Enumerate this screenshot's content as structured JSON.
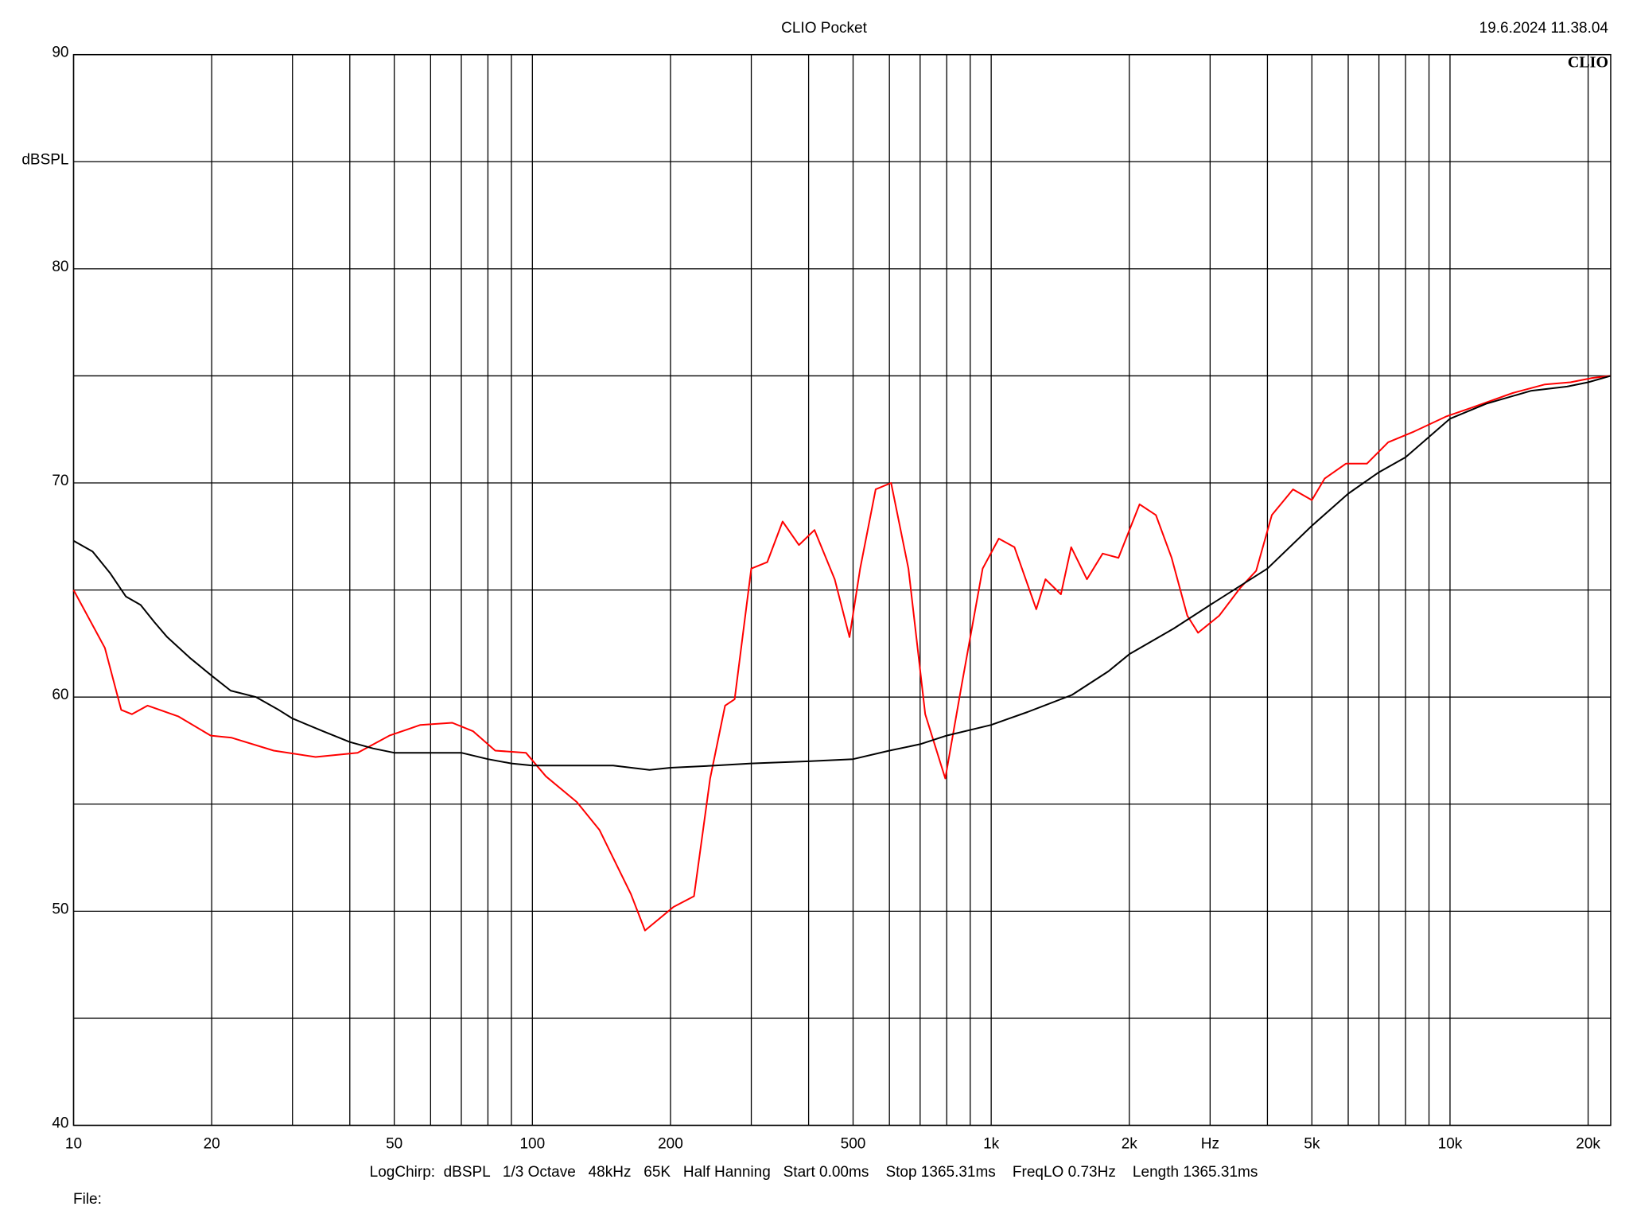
{
  "chart_data": {
    "type": "line",
    "title": "CLIO Pocket",
    "timestamp": "19.6.2024 11.38.04",
    "logo": "CLIO",
    "footer": "LogChirp:  dBSPL   1/3 Octave   48kHz   65K   Half Hanning   Start 0.00ms    Stop 1365.31ms    FreqLO 0.73Hz    Length 1365.31ms",
    "file_label": "File:",
    "xlog": true,
    "grid": true,
    "xlim": [
      10,
      22400
    ],
    "ylim": [
      40,
      90
    ],
    "xticks": [
      10,
      20,
      50,
      100,
      200,
      500,
      {
        "value": 1000,
        "label": "1k"
      },
      {
        "value": 2000,
        "label": "2k"
      },
      {
        "value": 3000,
        "label": "Hz"
      },
      {
        "value": 5000,
        "label": "5k"
      },
      {
        "value": 10000,
        "label": "10k"
      },
      {
        "value": 20000,
        "label": "20k"
      }
    ],
    "xgrid_minor": [
      30,
      40,
      60,
      70,
      80,
      90,
      300,
      400,
      600,
      700,
      800,
      900,
      4000,
      6000,
      7000,
      8000,
      9000
    ],
    "yticks": [
      40,
      50,
      60,
      70,
      80,
      {
        "value": 85,
        "label": "dBSPL"
      },
      90
    ],
    "ygrid_minor": [
      45,
      55,
      65,
      75
    ],
    "series": [
      {
        "color": "#ff0000",
        "x": [
          10,
          11.7,
          12.7,
          13.4,
          14.5,
          16.9,
          19.9,
          22.1,
          27.3,
          33.7,
          41.6,
          48.8,
          57,
          66.9,
          74.3,
          83,
          96.8,
          107,
          125,
          140,
          164,
          176,
          203,
          225,
          244,
          263,
          276,
          300,
          325,
          351,
          381,
          412,
          456,
          491,
          518,
          560,
          605,
          660,
          718,
          794,
          863,
          958,
          1039,
          1124,
          1254,
          1313,
          1419,
          1494,
          1617,
          1750,
          1894,
          2106,
          2285,
          2473,
          2676,
          2824,
          3140,
          3491,
          3780,
          4090,
          4548,
          5000,
          5330,
          5930,
          6590,
          7330,
          8350,
          9800,
          11100,
          13700,
          16100,
          18300,
          20400,
          22400
        ],
        "values": [
          65.0,
          62.3,
          59.4,
          59.2,
          59.6,
          59.1,
          58.2,
          58.1,
          57.5,
          57.2,
          57.4,
          58.2,
          58.7,
          58.8,
          58.4,
          57.5,
          57.4,
          56.3,
          55.1,
          53.8,
          50.8,
          49.1,
          50.2,
          50.7,
          56.2,
          59.6,
          59.9,
          66.0,
          66.3,
          68.2,
          67.1,
          67.8,
          65.5,
          62.8,
          66.0,
          69.7,
          70.0,
          66.0,
          59.2,
          56.2,
          60.6,
          66.0,
          67.4,
          67.0,
          64.1,
          65.5,
          64.8,
          67.0,
          65.5,
          66.7,
          66.5,
          69.0,
          68.5,
          66.5,
          63.8,
          63.0,
          63.8,
          65.1,
          65.9,
          68.5,
          69.7,
          69.2,
          70.2,
          70.9,
          70.9,
          71.9,
          72.4,
          73.1,
          73.5,
          74.2,
          74.6,
          74.7,
          74.9,
          75.0
        ]
      },
      {
        "color": "#000000",
        "x": [
          10,
          11,
          12,
          13,
          14,
          15,
          16,
          18,
          20,
          22,
          25,
          28,
          30,
          35,
          40,
          45,
          50,
          60,
          70,
          80,
          90,
          100,
          120,
          150,
          180,
          200,
          250,
          300,
          400,
          500,
          600,
          700,
          800,
          1000,
          1200,
          1500,
          1800,
          2000,
          2500,
          3000,
          4000,
          5000,
          6000,
          7000,
          8000,
          10000,
          12000,
          15000,
          18000,
          20000,
          22400
        ],
        "values": [
          67.3,
          66.8,
          65.8,
          64.7,
          64.3,
          63.5,
          62.8,
          61.8,
          61.0,
          60.3,
          60.0,
          59.4,
          59.0,
          58.4,
          57.9,
          57.6,
          57.4,
          57.4,
          57.4,
          57.1,
          56.9,
          56.8,
          56.8,
          56.8,
          56.6,
          56.7,
          56.8,
          56.9,
          57.0,
          57.1,
          57.5,
          57.8,
          58.2,
          58.7,
          59.3,
          60.1,
          61.2,
          62.0,
          63.2,
          64.3,
          66.0,
          68.0,
          69.5,
          70.5,
          71.2,
          73.0,
          73.7,
          74.3,
          74.5,
          74.7,
          75.0
        ]
      }
    ]
  }
}
